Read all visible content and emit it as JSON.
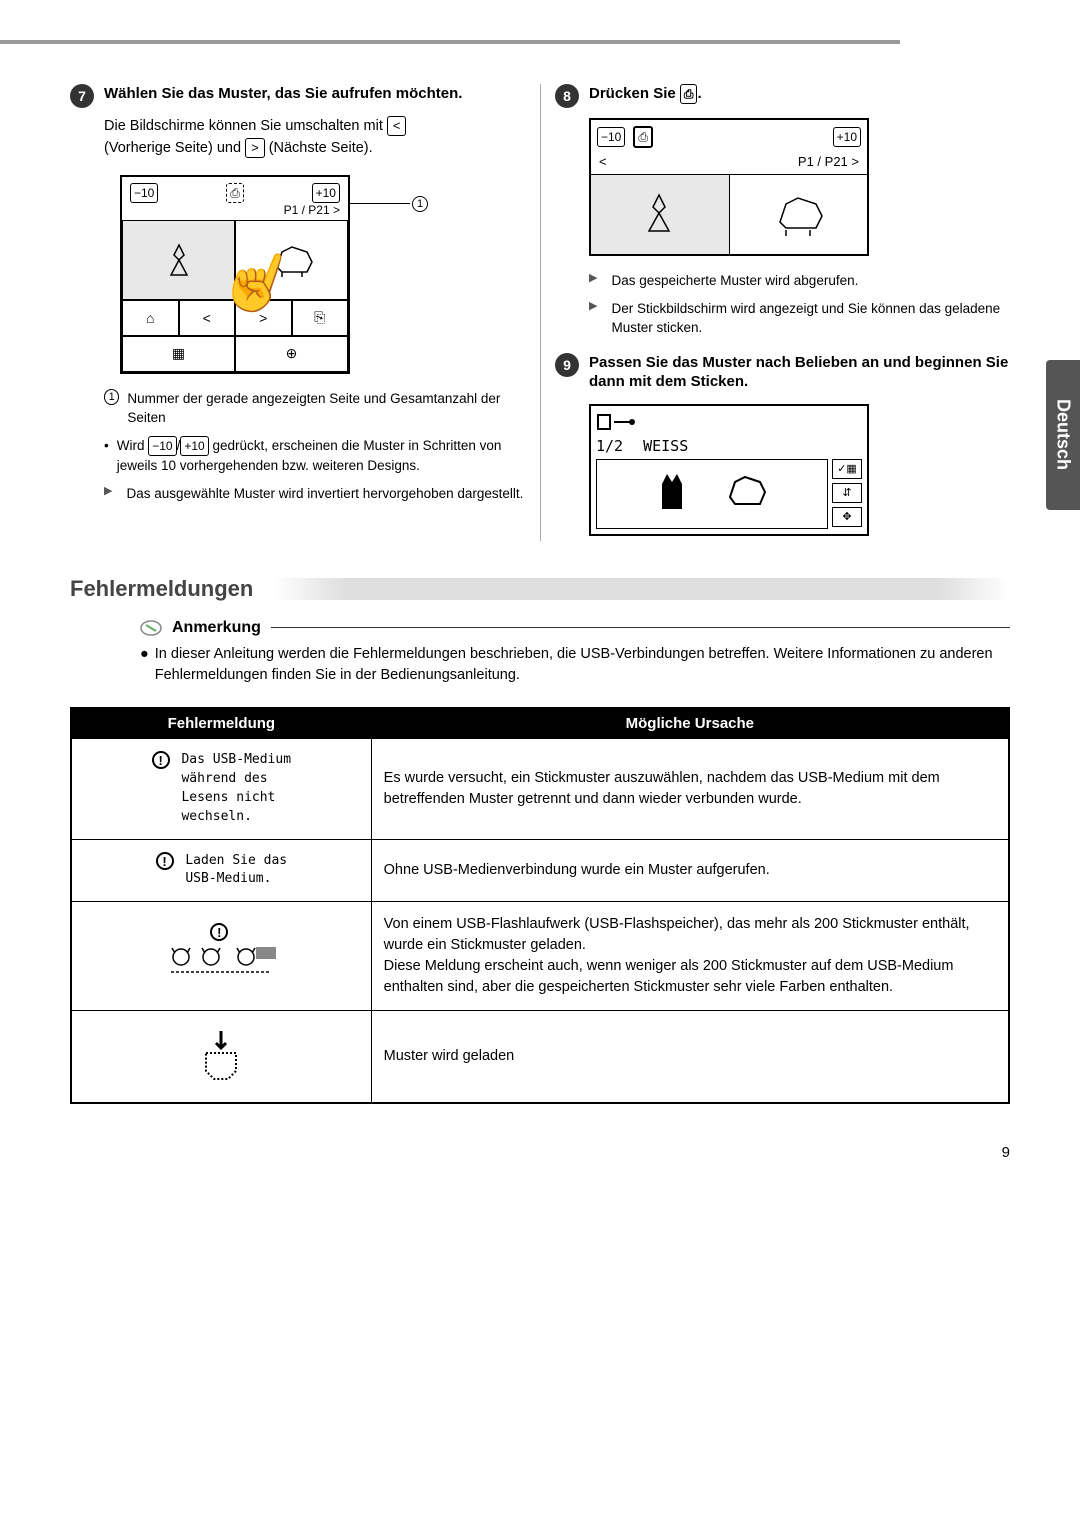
{
  "page_number": "9",
  "side_tab": "Deutsch",
  "step7": {
    "num": "7",
    "title": "Wählen Sie das Muster, das Sie aufrufen möchten.",
    "text_pre": "Die Bildschirme können Sie umschalten mit ",
    "prev_btn": "<",
    "text_mid": " (Vorherige Seite) und ",
    "next_btn": ">",
    "text_post": " (Nächste Seite).",
    "fig": {
      "minus10": "−10",
      "plus10": "+10",
      "usb_icon": "⎙",
      "page_ind": "P1 / P21",
      "page_arrow": ">",
      "callout": "1"
    },
    "legend1_num": "1",
    "legend1_text": "Nummer der gerade angezeigten Seite und Gesamtanzahl der Seiten",
    "bullet1_pre": "Wird ",
    "bullet1_m10": "−10",
    "bullet1_slash": "/",
    "bullet1_p10": "+10",
    "bullet1_post": " gedrückt, erscheinen die Muster in Schritten von jeweils 10 vorhergehenden bzw. weiteren Designs.",
    "bullet2": "Das ausgewählte Muster wird invertiert hervorgehoben dargestellt."
  },
  "step8": {
    "num": "8",
    "title_pre": "Drücken Sie ",
    "title_btn": "⎙",
    "title_post": ".",
    "fig": {
      "minus10": "−10",
      "usb_icon": "⎙",
      "plus10": "+10",
      "left": "<",
      "page_ind": "P1 / P21",
      "right": ">"
    },
    "bullet1": "Das gespeicherte Muster wird abgerufen.",
    "bullet2": "Der Stickbildschirm wird angezeigt und Sie können das geladene Muster sticken."
  },
  "step9": {
    "num": "9",
    "title": "Passen Sie das Muster nach Belieben an und beginnen Sie dann mit dem Sticken.",
    "fig": {
      "thread_icon": "🧵",
      "fraction": "1/2",
      "color": "WEISS"
    }
  },
  "section_error": {
    "heading": "Fehlermeldungen",
    "note_label": "Anmerkung",
    "note_text": "In dieser Anleitung werden die Fehlermeldungen beschrieben, die USB-Verbindungen betreffen. Weitere Informationen zu anderen Fehlermeldungen finden Sie in der Bedienungsanleitung."
  },
  "table": {
    "col1": "Fehlermeldung",
    "col2": "Mögliche Ursache",
    "rows": [
      {
        "msg": "Das USB-Medium\nwährend des\nLesens nicht\nwechseln.",
        "has_icon": true,
        "cause": "Es wurde versucht, ein Stickmuster auszuwählen, nachdem das USB-Medium mit dem betreffenden Muster getrennt und dann wieder verbunden wurde."
      },
      {
        "msg": "Laden Sie das\nUSB-Medium.",
        "has_icon": true,
        "cause": "Ohne USB-Medienverbindung wurde ein Muster aufgerufen."
      },
      {
        "msg": "",
        "has_icon": true,
        "is_graphic": true,
        "cause": "Von einem USB-Flashlaufwerk (USB-Flashspeicher), das mehr als 200 Stickmuster enthält, wurde ein Stickmuster geladen.\nDiese Meldung erscheint auch, wenn weniger als 200 Stickmuster auf dem USB-Medium enthalten sind, aber die gespeicherten Stickmuster sehr viele Farben enthalten."
      },
      {
        "msg": "",
        "has_icon": false,
        "is_pocket": true,
        "cause": "Muster wird geladen"
      }
    ]
  }
}
